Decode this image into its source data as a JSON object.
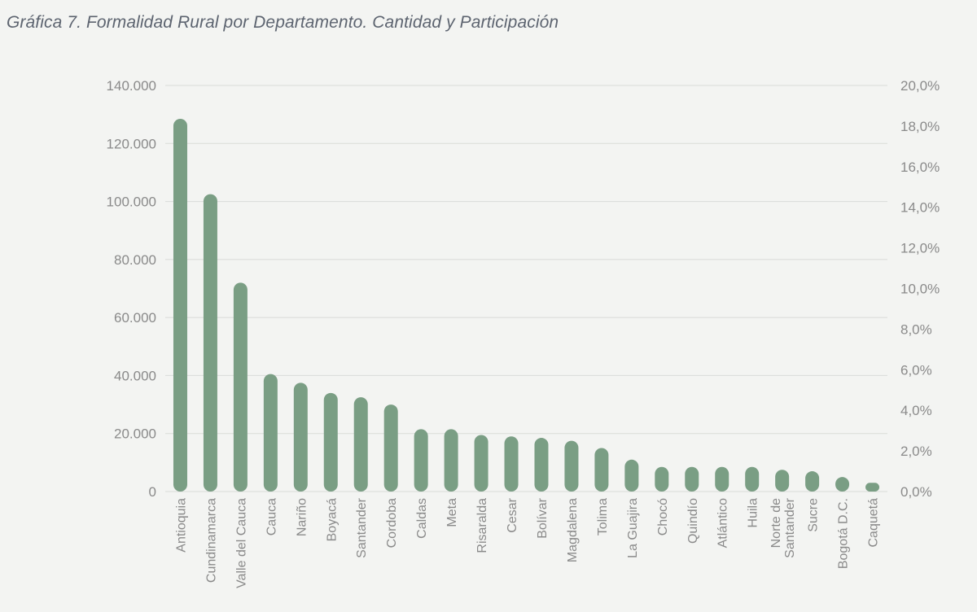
{
  "title": "Gráfica 7. Formalidad Rural por Departamento. Cantidad y Participación",
  "chart_data": {
    "type": "bar",
    "title": "Gráfica 7. Formalidad Rural por Departamento. Cantidad y Participación",
    "xlabel": "",
    "ylabel": "",
    "ylim": [
      0,
      140000
    ],
    "y2lim": [
      0,
      20
    ],
    "yticks": [
      "0",
      "20.000",
      "40.000",
      "60.000",
      "80.000",
      "100.000",
      "120.000",
      "140.000"
    ],
    "y2ticks": [
      "0,0%",
      "2,0%",
      "4,0%",
      "6,0%",
      "8,0%",
      "10,0%",
      "12,0%",
      "14,0%",
      "16,0%",
      "18,0%",
      "20,0%"
    ],
    "grid": true,
    "bar_color": "#7a9e84",
    "categories": [
      [
        "Antioquia"
      ],
      [
        "Cundinamarca"
      ],
      [
        "Valle del Cauca"
      ],
      [
        "Cauca"
      ],
      [
        "Nariño"
      ],
      [
        "Boyacá"
      ],
      [
        "Santander"
      ],
      [
        "Cordoba"
      ],
      [
        "Caldas"
      ],
      [
        "Meta"
      ],
      [
        "Risaralda"
      ],
      [
        "Cesar"
      ],
      [
        "Bolívar"
      ],
      [
        "Magdalena"
      ],
      [
        "Tolima"
      ],
      [
        "La Guajira"
      ],
      [
        "Chocó"
      ],
      [
        "Quindío"
      ],
      [
        "Atlántico"
      ],
      [
        "Huila"
      ],
      [
        "Norte de",
        "Santander"
      ],
      [
        "Sucre"
      ],
      [
        "Bogotá D.C."
      ],
      [
        "Caquetá"
      ]
    ],
    "values": [
      128500,
      102500,
      72000,
      40500,
      37500,
      34000,
      32500,
      30000,
      21500,
      21500,
      19500,
      19000,
      18500,
      17500,
      15000,
      11000,
      8500,
      8500,
      8500,
      8500,
      7500,
      7000,
      5000,
      3000
    ]
  }
}
